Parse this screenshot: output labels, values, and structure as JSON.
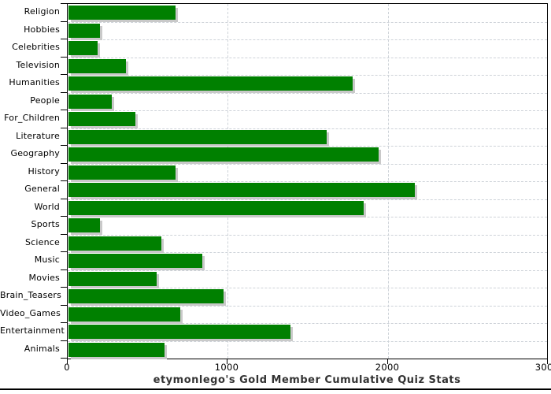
{
  "chart_data": {
    "type": "bar",
    "orientation": "horizontal",
    "title": "etymonlego's Gold Member Cumulative Quiz Stats",
    "xlabel": "",
    "ylabel": "",
    "xlim": [
      0,
      3000
    ],
    "xticks": [
      0,
      1000,
      2000,
      3000
    ],
    "xtick_labels": [
      "0",
      "1000",
      "2000",
      "3000"
    ],
    "grid": "dashed vertical gridlines at x ticks, dashed horizontal gridlines at category boundaries",
    "legend": "none",
    "categories": [
      "Religion",
      "Hobbies",
      "Celebrities",
      "Television",
      "Humanities",
      "People",
      "For_Children",
      "Literature",
      "Geography",
      "History",
      "General",
      "World",
      "Sports",
      "Science",
      "Music",
      "Movies",
      "Brain_Teasers",
      "Video_Games",
      "Entertainment",
      "Animals"
    ],
    "values": [
      670,
      195,
      180,
      360,
      1775,
      270,
      420,
      1615,
      1940,
      670,
      2165,
      1845,
      195,
      580,
      835,
      550,
      970,
      700,
      1385,
      600
    ],
    "colors": {
      "bar": "#008000",
      "bar_shadow": "#c9c9c9",
      "gridline": "#cdd2d8",
      "axis": "#000000",
      "title_text": "#333333",
      "label_text": "#000000",
      "background": "#ffffff"
    }
  }
}
